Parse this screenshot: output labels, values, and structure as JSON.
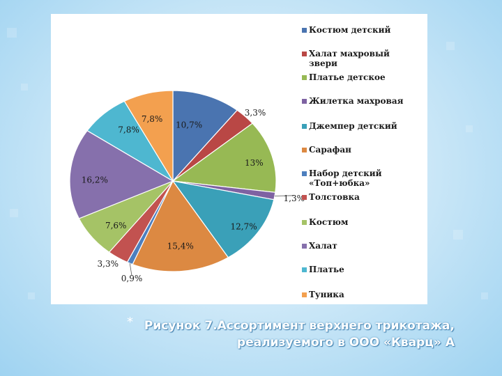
{
  "caption": {
    "marker": "*",
    "text": "Рисунок 7.Ассортимент верхнего трикотажа, реализуемого в ООО «Кварц» А"
  },
  "chart_data": {
    "type": "pie",
    "title": "",
    "start_angle_deg": 0,
    "direction": "clockwise",
    "slices": [
      {
        "name": "Костюм детский",
        "value": 10.7,
        "label": "10,7%",
        "color": "#4a74b0"
      },
      {
        "name": "Халат махровый звери",
        "value": 3.3,
        "label": "3,3%",
        "color": "#b94745"
      },
      {
        "name": "Платье детское",
        "value": 13,
        "label": "13%",
        "color": "#97b954"
      },
      {
        "name": "Жилетка махровая",
        "value": 1.3,
        "label": "1,3%",
        "color": "#7e62a2"
      },
      {
        "name": "Джемпер детский",
        "value": 12.7,
        "label": "12,7%",
        "color": "#3aa0b8"
      },
      {
        "name": "Сарафан",
        "value": 15.4,
        "label": "15,4%",
        "color": "#dc8942"
      },
      {
        "name": "Набор детский «Топ+юбка»",
        "value": 0.9,
        "label": "0,9%",
        "color": "#4d7fbe"
      },
      {
        "name": "Толстовка",
        "value": 3.3,
        "label": "3,3%",
        "color": "#c25250"
      },
      {
        "name": "Костюм",
        "value": 7.6,
        "label": "7,6%",
        "color": "#a5c366"
      },
      {
        "name": "Халат",
        "value": 16.2,
        "label": "16,2%",
        "color": "#8670ac"
      },
      {
        "name": "Платье",
        "value": 7.8,
        "label": "7,8%",
        "color": "#4eb7d0"
      },
      {
        "name": "Туника",
        "value": 7.8,
        "label": "7,8%",
        "color": "#f3a04f"
      }
    ],
    "legend": {
      "position": "right",
      "entries": [
        "Костюм детский",
        "Халат махровый\nзвери",
        "Платье детское",
        "Жилетка махровая",
        "Джемпер детский",
        "Сарафан",
        "Набор детский\n«Топ+юбка»",
        "Толстовка",
        "Костюм",
        "Халат",
        "Платье",
        "Туника"
      ]
    }
  }
}
